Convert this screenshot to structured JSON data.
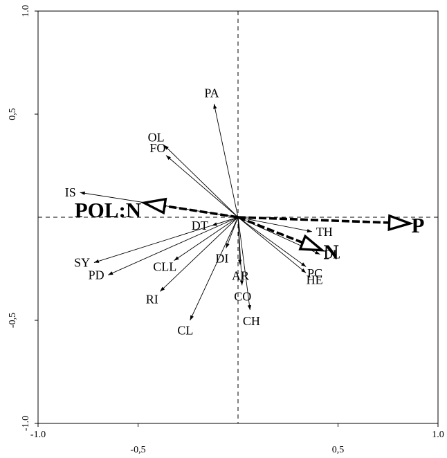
{
  "chart_data": {
    "type": "scatter",
    "title": "",
    "xlabel": "",
    "ylabel": "",
    "xlim": [
      -1.0,
      1.0
    ],
    "ylim": [
      -1.0,
      1.0
    ],
    "x_ticks": [
      {
        "value": -1.0,
        "label": "-1.0"
      },
      {
        "value": -0.5,
        "label": "-0,5"
      },
      {
        "value": 0.5,
        "label": "0,5"
      },
      {
        "value": 1.0,
        "label": "1.0"
      }
    ],
    "y_ticks": [
      {
        "value": 1.0,
        "label": "1.0"
      },
      {
        "value": 0.5,
        "label": "0,5"
      },
      {
        "value": -0.5,
        "label": "-0,5"
      },
      {
        "value": -1.0,
        "label": "-1.0"
      }
    ],
    "grid": false,
    "zero_lines": "dashed",
    "species": [
      {
        "label": "PA",
        "x": -0.12,
        "y": 0.55
      },
      {
        "label": "OL",
        "x": -0.37,
        "y": 0.35
      },
      {
        "label": "FO",
        "x": -0.36,
        "y": 0.3
      },
      {
        "label": "IS",
        "x": -0.79,
        "y": 0.12
      },
      {
        "label": "DT",
        "x": -0.13,
        "y": -0.04
      },
      {
        "label": "DI",
        "x": -0.06,
        "y": -0.15
      },
      {
        "label": "SY",
        "x": -0.72,
        "y": -0.22
      },
      {
        "label": "CLL",
        "x": -0.32,
        "y": -0.21
      },
      {
        "label": "AR",
        "x": 0.01,
        "y": -0.23
      },
      {
        "label": "PD",
        "x": -0.65,
        "y": -0.28
      },
      {
        "label": "RI",
        "x": -0.39,
        "y": -0.36
      },
      {
        "label": "CO",
        "x": 0.02,
        "y": -0.33
      },
      {
        "label": "CL",
        "x": -0.24,
        "y": -0.5
      },
      {
        "label": "CH",
        "x": 0.06,
        "y": -0.45
      },
      {
        "label": "TH",
        "x": 0.37,
        "y": -0.07
      },
      {
        "label": "DL",
        "x": 0.41,
        "y": -0.18
      },
      {
        "label": "PC",
        "x": 0.34,
        "y": -0.24
      },
      {
        "label": "HE",
        "x": 0.34,
        "y": -0.27
      }
    ],
    "environmental": [
      {
        "label": "POL:N",
        "x": -0.47,
        "y": 0.07
      },
      {
        "label": "P",
        "x": 0.86,
        "y": -0.03
      },
      {
        "label": "N",
        "x": 0.42,
        "y": -0.16
      }
    ]
  }
}
